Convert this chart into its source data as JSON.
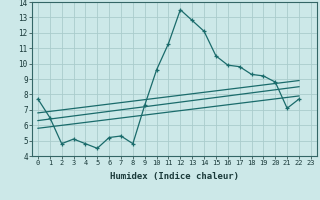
{
  "xlabel": "Humidex (Indice chaleur)",
  "bg_color": "#cce8e8",
  "grid_color": "#aacccc",
  "line_color": "#1a6b6b",
  "xlim": [
    -0.5,
    23.5
  ],
  "ylim": [
    4,
    14
  ],
  "yticks": [
    4,
    5,
    6,
    7,
    8,
    9,
    10,
    11,
    12,
    13,
    14
  ],
  "xticks": [
    0,
    1,
    2,
    3,
    4,
    5,
    6,
    7,
    8,
    9,
    10,
    11,
    12,
    13,
    14,
    15,
    16,
    17,
    18,
    19,
    20,
    21,
    22,
    23
  ],
  "series1_x": [
    0,
    1,
    2,
    3,
    4,
    5,
    6,
    7,
    8,
    9,
    10,
    11,
    12,
    13,
    14,
    15,
    16,
    17,
    18,
    19,
    20,
    21,
    22
  ],
  "series1_y": [
    7.7,
    6.5,
    4.8,
    5.1,
    4.8,
    4.5,
    5.2,
    5.3,
    4.8,
    7.3,
    9.6,
    11.3,
    13.5,
    12.8,
    12.1,
    10.5,
    9.9,
    9.8,
    9.3,
    9.2,
    8.8,
    7.1,
    7.7
  ],
  "series2_x": [
    0,
    22
  ],
  "series2_y": [
    6.8,
    8.9
  ],
  "series3_x": [
    0,
    22
  ],
  "series3_y": [
    6.3,
    8.5
  ],
  "series4_x": [
    0,
    22
  ],
  "series4_y": [
    5.8,
    7.9
  ]
}
